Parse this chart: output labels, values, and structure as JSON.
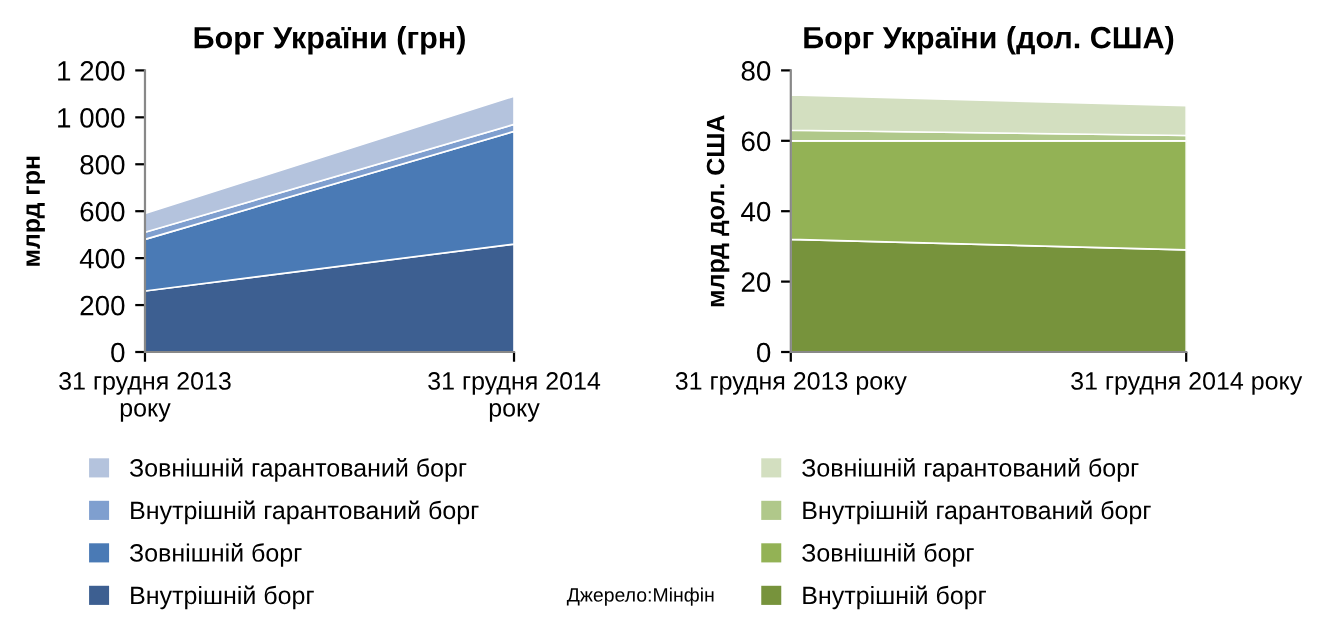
{
  "chart_data": [
    {
      "type": "area",
      "stacked": true,
      "title": "Борг України (грн)",
      "ylabel": "млрд грн",
      "categories": [
        "31 грудня 2013 року",
        "31 грудня 2014 року"
      ],
      "ylim": [
        0,
        1200
      ],
      "yticks": [
        0,
        200,
        400,
        600,
        800,
        {
          "value": 1000,
          "label": "1 000"
        },
        {
          "value": 1200,
          "label": "1 200"
        }
      ],
      "legend": "bottom",
      "grid": false,
      "series": [
        {
          "name": "Внутрішній борг",
          "color": "#3d5f91",
          "values": [
            260,
            460
          ]
        },
        {
          "name": "Зовнішній борг",
          "color": "#4a7ab5",
          "values": [
            220,
            480
          ]
        },
        {
          "name": "Внутрішній гарантований борг",
          "color": "#7f9fcf",
          "values": [
            30,
            30
          ]
        },
        {
          "name": "Зовнішній гарантований борг",
          "color": "#b4c3dd",
          "values": [
            80,
            120
          ]
        }
      ]
    },
    {
      "type": "area",
      "stacked": true,
      "title": "Борг України (дол. США)",
      "ylabel": "млрд дол. США",
      "categories": [
        "31 грудня 2013 року",
        "31 грудня 2014 року"
      ],
      "ylim": [
        0,
        80
      ],
      "yticks": [
        0,
        20,
        40,
        60,
        80
      ],
      "legend": "bottom",
      "grid": false,
      "annotations": [
        "Джерело:Мінфін"
      ],
      "series": [
        {
          "name": "Внутрішній борг",
          "color": "#77933c",
          "values": [
            32,
            29
          ]
        },
        {
          "name": "Зовнішній борг",
          "color": "#93b255",
          "values": [
            28,
            31
          ]
        },
        {
          "name": "Внутрішній гарантований борг",
          "color": "#b0c88a",
          "values": [
            3,
            1.5
          ]
        },
        {
          "name": "Зовнішній гарантований борг",
          "color": "#d3dfc0",
          "values": [
            10,
            8.5
          ]
        }
      ]
    }
  ]
}
